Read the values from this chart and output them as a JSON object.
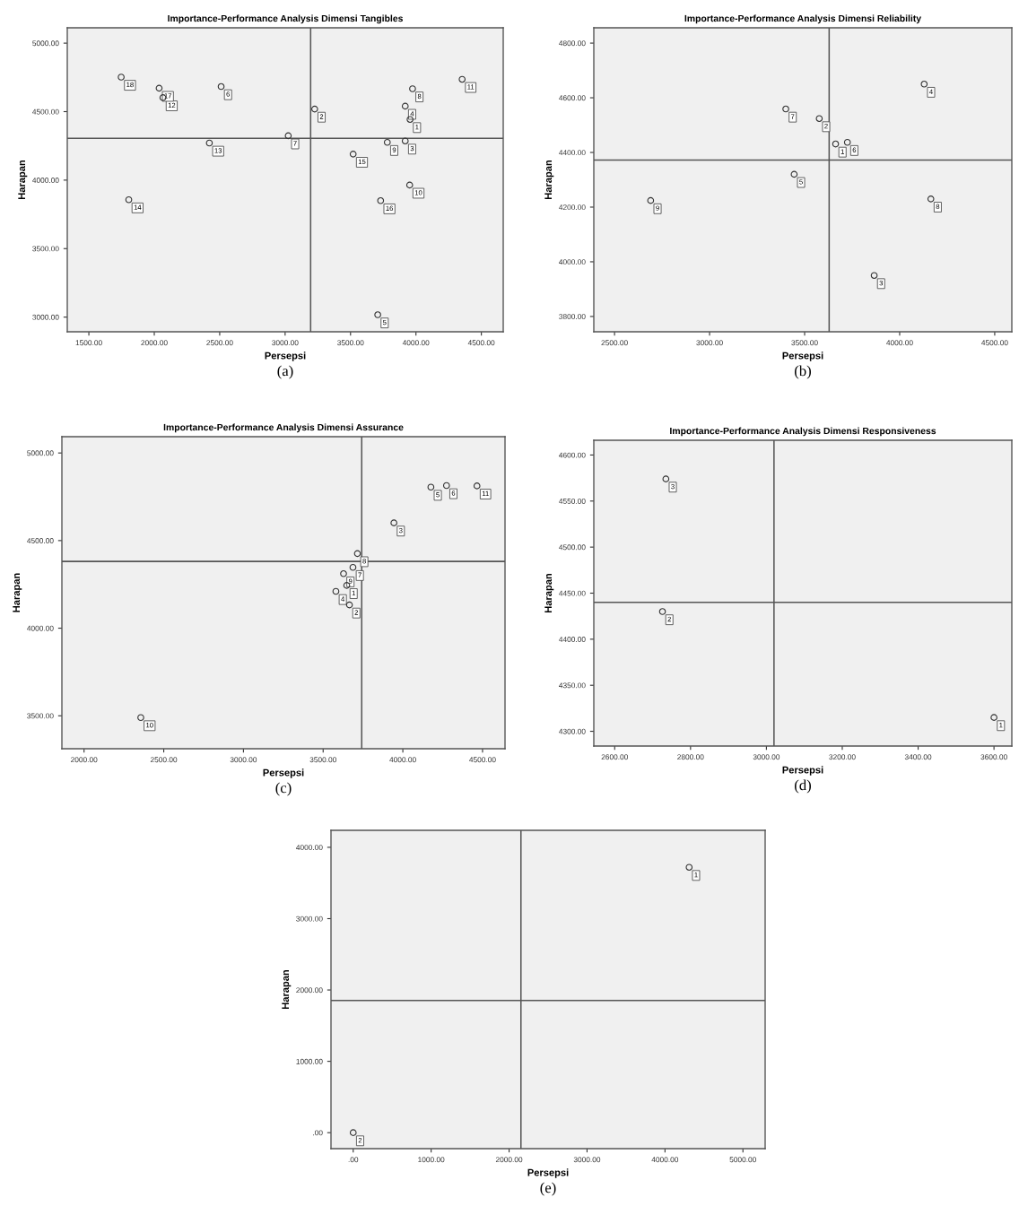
{
  "chart_data": [
    {
      "type": "scatter",
      "title": "Importance-Performance Analysis Dimensi Tangibles",
      "xlabel": "Persepsi",
      "ylabel": "Harapan",
      "marker": "circle",
      "grid": false,
      "xlim": [
        1335,
        4667
      ],
      "ylim": [
        2893,
        5112
      ],
      "xticks": [
        {
          "value": 1500,
          "label": "1500.00"
        },
        {
          "value": 2000,
          "label": "2000.00"
        },
        {
          "value": 2500,
          "label": "2500.00"
        },
        {
          "value": 3000,
          "label": "3000.00"
        },
        {
          "value": 3500,
          "label": "3500.00"
        },
        {
          "value": 4000,
          "label": "4000.00"
        },
        {
          "value": 4500,
          "label": "4500.00"
        }
      ],
      "yticks": [
        {
          "value": 3000,
          "label": "3000.00"
        },
        {
          "value": 3500,
          "label": "3500.00"
        },
        {
          "value": 4000,
          "label": "4000.00"
        },
        {
          "value": 4500,
          "label": "4500.00"
        },
        {
          "value": 5000,
          "label": "5000.00"
        }
      ],
      "series": [
        {
          "color": "#333333",
          "x": [
            3955,
            3226,
            3918,
            3918,
            3708,
            2511,
            3024,
            3974,
            3781,
            3952,
            4353,
            2066,
            2421,
            1805,
            3520,
            3730,
            2037,
            1747
          ],
          "values": [
            4443,
            4519,
            4286,
            4540,
            3017,
            4683,
            4324,
            4667,
            4276,
            3964,
            4736,
            4602,
            4271,
            3857,
            4190,
            3850,
            4671,
            4752
          ]
        }
      ],
      "ref_lines": [
        {
          "axis": "x",
          "value": 3195
        },
        {
          "axis": "y",
          "value": 4305
        }
      ],
      "annotations": [
        {
          "text": "1",
          "x": 3955,
          "y": 4443
        },
        {
          "text": "2",
          "x": 3226,
          "y": 4519
        },
        {
          "text": "3",
          "x": 3918,
          "y": 4286
        },
        {
          "text": "4",
          "x": 3918,
          "y": 4540
        },
        {
          "text": "5",
          "x": 3708,
          "y": 3017
        },
        {
          "text": "6",
          "x": 2511,
          "y": 4683
        },
        {
          "text": "7",
          "x": 3024,
          "y": 4324
        },
        {
          "text": "8",
          "x": 3974,
          "y": 4667
        },
        {
          "text": "9",
          "x": 3781,
          "y": 4276
        },
        {
          "text": "10",
          "x": 3952,
          "y": 3964
        },
        {
          "text": "11",
          "x": 4353,
          "y": 4736
        },
        {
          "text": "12",
          "x": 2066,
          "y": 4602
        },
        {
          "text": "13",
          "x": 2421,
          "y": 4271
        },
        {
          "text": "14",
          "x": 1805,
          "y": 3857
        },
        {
          "text": "15",
          "x": 3520,
          "y": 4190
        },
        {
          "text": "16",
          "x": 3730,
          "y": 3850
        },
        {
          "text": "17",
          "x": 2037,
          "y": 4671
        },
        {
          "text": "18",
          "x": 1747,
          "y": 4752
        },
        "(a)"
      ]
    },
    {
      "type": "scatter",
      "title": "Importance-Performance Analysis Dimensi Reliability",
      "xlabel": "Persepsi",
      "ylabel": "Harapan",
      "marker": "circle",
      "grid": false,
      "xlim": [
        2391,
        4590
      ],
      "ylim": [
        3744,
        4856
      ],
      "xticks": [
        {
          "value": 2500,
          "label": "2500.00"
        },
        {
          "value": 3000,
          "label": "3000.00"
        },
        {
          "value": 3500,
          "label": "3500.00"
        },
        {
          "value": 4000,
          "label": "4000.00"
        },
        {
          "value": 4500,
          "label": "4500.00"
        }
      ],
      "yticks": [
        {
          "value": 3800,
          "label": "3800.00"
        },
        {
          "value": 4000,
          "label": "4000.00"
        },
        {
          "value": 4200,
          "label": "4200.00"
        },
        {
          "value": 4400,
          "label": "4400.00"
        },
        {
          "value": 4600,
          "label": "4600.00"
        },
        {
          "value": 4800,
          "label": "4800.00"
        }
      ],
      "series": [
        {
          "color": "#333333",
          "x": [
            3663,
            3577,
            3866,
            4129,
            3445,
            3725,
            3401,
            4164,
            2690
          ],
          "values": [
            4431,
            4524,
            3950,
            4650,
            4320,
            4437,
            4559,
            4230,
            4224
          ]
        }
      ],
      "ref_lines": [
        {
          "axis": "x",
          "value": 3629
        },
        {
          "axis": "y",
          "value": 4372
        }
      ],
      "annotations": [
        {
          "text": "1",
          "x": 3663,
          "y": 4431
        },
        {
          "text": "2",
          "x": 3577,
          "y": 4524
        },
        {
          "text": "3",
          "x": 3866,
          "y": 3950
        },
        {
          "text": "4",
          "x": 4129,
          "y": 4650
        },
        {
          "text": "5",
          "x": 3445,
          "y": 4320
        },
        {
          "text": "6",
          "x": 3725,
          "y": 4437
        },
        {
          "text": "7",
          "x": 3401,
          "y": 4559
        },
        {
          "text": "8",
          "x": 4164,
          "y": 4230
        },
        {
          "text": "9",
          "x": 2690,
          "y": 4224
        },
        "(b)"
      ]
    },
    {
      "type": "scatter",
      "title": "Importance-Performance Analysis Dimensi Assurance",
      "xlabel": "Persepsi",
      "ylabel": "Harapan",
      "marker": "circle",
      "grid": false,
      "xlim": [
        1861,
        4641
      ],
      "ylim": [
        3312,
        5093
      ],
      "xticks": [
        {
          "value": 2000,
          "label": "2000.00"
        },
        {
          "value": 2500,
          "label": "2500.00"
        },
        {
          "value": 3000,
          "label": "3000.00"
        },
        {
          "value": 3500,
          "label": "3500.00"
        },
        {
          "value": 4000,
          "label": "4000.00"
        },
        {
          "value": 4500,
          "label": "4500.00"
        }
      ],
      "yticks": [
        {
          "value": 3500,
          "label": "3500.00"
        },
        {
          "value": 4000,
          "label": "4000.00"
        },
        {
          "value": 4500,
          "label": "4500.00"
        },
        {
          "value": 5000,
          "label": "5000.00"
        }
      ],
      "series": [
        {
          "color": "#333333",
          "x": [
            3648,
            3665,
            3944,
            3580,
            4176,
            4274,
            3687,
            3715,
            3628,
            2356,
            4465
          ],
          "values": [
            4244,
            4133,
            4601,
            4210,
            4805,
            4814,
            4347,
            4426,
            4311,
            3490,
            4812
          ]
        }
      ],
      "ref_lines": [
        {
          "axis": "x",
          "value": 3742
        },
        {
          "axis": "y",
          "value": 4381
        }
      ],
      "annotations": [
        {
          "text": "1",
          "x": 3648,
          "y": 4244
        },
        {
          "text": "2",
          "x": 3665,
          "y": 4133
        },
        {
          "text": "3",
          "x": 3944,
          "y": 4601
        },
        {
          "text": "4",
          "x": 3580,
          "y": 4210
        },
        {
          "text": "5",
          "x": 4176,
          "y": 4805
        },
        {
          "text": "6",
          "x": 4274,
          "y": 4814
        },
        {
          "text": "7",
          "x": 3687,
          "y": 4347
        },
        {
          "text": "8",
          "x": 3715,
          "y": 4426
        },
        {
          "text": "9",
          "x": 3628,
          "y": 4311
        },
        {
          "text": "10",
          "x": 2356,
          "y": 3490
        },
        {
          "text": "11",
          "x": 4465,
          "y": 4812
        },
        "(c)"
      ]
    },
    {
      "type": "scatter",
      "title": "Importance-Performance Analysis Dimensi Responsiveness",
      "xlabel": "Persepsi",
      "ylabel": "Harapan",
      "marker": "circle",
      "grid": false,
      "xlim": [
        2545,
        3647
      ],
      "ylim": [
        4284,
        4616
      ],
      "xticks": [
        {
          "value": 2600,
          "label": "2600.00"
        },
        {
          "value": 2800,
          "label": "2800.00"
        },
        {
          "value": 3000,
          "label": "3000.00"
        },
        {
          "value": 3200,
          "label": "3200.00"
        },
        {
          "value": 3400,
          "label": "3400.00"
        },
        {
          "value": 3600,
          "label": "3600.00"
        }
      ],
      "yticks": [
        {
          "value": 4300,
          "label": "4300.00"
        },
        {
          "value": 4350,
          "label": "4350.00"
        },
        {
          "value": 4400,
          "label": "4400.00"
        },
        {
          "value": 4450,
          "label": "4450.00"
        },
        {
          "value": 4500,
          "label": "4500.00"
        },
        {
          "value": 4550,
          "label": "4550.00"
        },
        {
          "value": 4600,
          "label": "4600.00"
        }
      ],
      "series": [
        {
          "color": "#333333",
          "x": [
            3600,
            2726,
            2735
          ],
          "values": [
            4315,
            4430,
            4574
          ]
        }
      ],
      "ref_lines": [
        {
          "axis": "x",
          "value": 3020
        },
        {
          "axis": "y",
          "value": 4440
        }
      ],
      "annotations": [
        {
          "text": "1",
          "x": 3600,
          "y": 4315
        },
        {
          "text": "2",
          "x": 2726,
          "y": 4430
        },
        {
          "text": "3",
          "x": 2735,
          "y": 4574
        },
        "(d)"
      ]
    },
    {
      "type": "scatter",
      "xlabel": "Persepsi",
      "ylabel": "Harapan",
      "marker": "circle",
      "grid": false,
      "xlim": [
        -285,
        5285
      ],
      "ylim": [
        -224,
        4238
      ],
      "xticks": [
        {
          "value": 0,
          "label": ".00"
        },
        {
          "value": 1000,
          "label": "1000.00"
        },
        {
          "value": 2000,
          "label": "2000.00"
        },
        {
          "value": 3000,
          "label": "3000.00"
        },
        {
          "value": 4000,
          "label": "4000.00"
        },
        {
          "value": 5000,
          "label": "5000.00"
        }
      ],
      "yticks": [
        {
          "value": 0,
          "label": ".00"
        },
        {
          "value": 1000,
          "label": "1000.00"
        },
        {
          "value": 2000,
          "label": "2000.00"
        },
        {
          "value": 3000,
          "label": "3000.00"
        },
        {
          "value": 4000,
          "label": "4000.00"
        }
      ],
      "series": [
        {
          "color": "#333333",
          "x": [
            4310,
            0
          ],
          "values": [
            3720,
            0
          ]
        }
      ],
      "ref_lines": [
        {
          "axis": "x",
          "value": 2152
        },
        {
          "axis": "y",
          "value": 1854
        }
      ],
      "annotations": [
        {
          "text": "1",
          "x": 4310,
          "y": 3720
        },
        {
          "text": "2",
          "x": 0,
          "y": 0
        },
        "(e)"
      ]
    }
  ]
}
